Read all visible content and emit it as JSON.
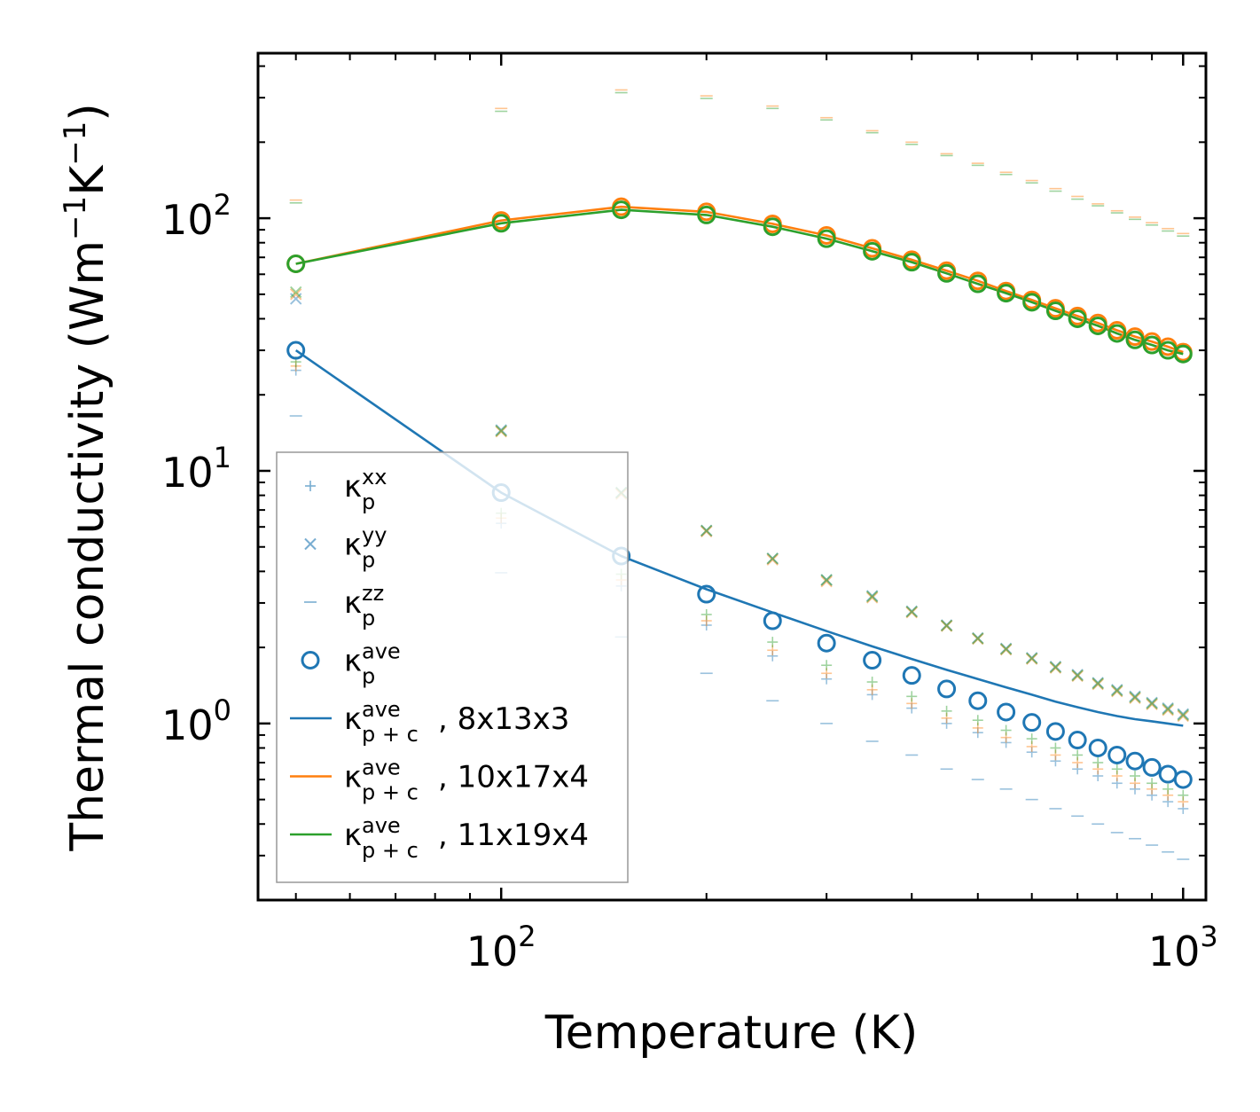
{
  "chart_data": {
    "type": "scatter",
    "title": "",
    "xlabel": "Temperature (K)",
    "ylabel": "Thermal conductivity (Wm$^{-1}$K$^{-1}$)",
    "xscale": "log",
    "yscale": "log",
    "xlim": [
      44,
      1080
    ],
    "ylim": [
      0.2,
      450
    ],
    "x_ticks": [
      {
        "value": 100,
        "base": "10",
        "exp": "2"
      },
      {
        "value": 1000,
        "base": "10",
        "exp": "3"
      }
    ],
    "y_ticks": [
      {
        "value": 1,
        "base": "10",
        "exp": "0"
      },
      {
        "value": 10,
        "base": "10",
        "exp": "1"
      },
      {
        "value": 100,
        "base": "10",
        "exp": "2"
      }
    ],
    "x": [
      50,
      100,
      150,
      200,
      250,
      300,
      350,
      400,
      450,
      500,
      550,
      600,
      650,
      700,
      750,
      800,
      850,
      900,
      950,
      1000
    ],
    "series": [
      {
        "name": "κp^xx (8x13x3)",
        "group": "xx",
        "marker": "plus",
        "color": "#1f77b4",
        "opacity": 0.45,
        "values": [
          25.0,
          6.2,
          3.5,
          2.45,
          1.85,
          1.5,
          1.3,
          1.15,
          1.0,
          0.92,
          0.84,
          0.77,
          0.71,
          0.66,
          0.62,
          0.58,
          0.55,
          0.52,
          0.49,
          0.46
        ]
      },
      {
        "name": "κp^xx (10x17x4)",
        "group": "xx",
        "marker": "plus",
        "color": "#ff7f0e",
        "opacity": 0.45,
        "values": [
          26.0,
          6.5,
          3.7,
          2.55,
          1.95,
          1.58,
          1.36,
          1.2,
          1.05,
          0.96,
          0.88,
          0.81,
          0.75,
          0.7,
          0.66,
          0.62,
          0.58,
          0.55,
          0.52,
          0.49
        ]
      },
      {
        "name": "κp^xx (11x19x4)",
        "group": "xx",
        "marker": "plus",
        "color": "#2ca02c",
        "opacity": 0.45,
        "values": [
          27.0,
          6.8,
          3.9,
          2.7,
          2.1,
          1.7,
          1.46,
          1.28,
          1.12,
          1.03,
          0.94,
          0.87,
          0.8,
          0.75,
          0.7,
          0.66,
          0.62,
          0.58,
          0.55,
          0.52
        ]
      },
      {
        "name": "κp^yy (8x13x3)",
        "group": "yy",
        "marker": "cross",
        "color": "#1f77b4",
        "opacity": 0.45,
        "values": [
          48.0,
          14.5,
          8.2,
          5.8,
          4.5,
          3.7,
          3.2,
          2.78,
          2.45,
          2.18,
          1.98,
          1.82,
          1.68,
          1.56,
          1.45,
          1.36,
          1.28,
          1.21,
          1.15,
          1.09
        ]
      },
      {
        "name": "κp^yy (10x17x4)",
        "group": "yy",
        "marker": "cross",
        "color": "#ff7f0e",
        "opacity": 0.45,
        "values": [
          50.0,
          14.3,
          8.1,
          5.75,
          4.45,
          3.65,
          3.15,
          2.75,
          2.43,
          2.16,
          1.96,
          1.8,
          1.66,
          1.54,
          1.43,
          1.34,
          1.26,
          1.19,
          1.13,
          1.07
        ]
      },
      {
        "name": "κp^yy (11x19x4)",
        "group": "yy",
        "marker": "cross",
        "color": "#2ca02c",
        "opacity": 0.45,
        "values": [
          51.0,
          14.4,
          8.2,
          5.8,
          4.5,
          3.7,
          3.18,
          2.77,
          2.44,
          2.17,
          1.97,
          1.81,
          1.67,
          1.55,
          1.44,
          1.35,
          1.27,
          1.2,
          1.14,
          1.08
        ]
      },
      {
        "name": "κp^zz (8x13x3)",
        "group": "zz",
        "marker": "hline",
        "color": "#1f77b4",
        "opacity": 0.45,
        "values": [
          16.5,
          3.95,
          2.2,
          1.58,
          1.23,
          1.0,
          0.85,
          0.75,
          0.66,
          0.6,
          0.55,
          0.5,
          0.46,
          0.43,
          0.4,
          0.37,
          0.35,
          0.33,
          0.31,
          0.29
        ]
      },
      {
        "name": "κp^zz (10x17x4)",
        "group": "zz",
        "marker": "hline",
        "color": "#ff7f0e",
        "opacity": 0.45,
        "values": [
          118,
          272,
          322,
          305,
          278,
          250,
          222,
          200,
          180,
          165,
          152,
          141,
          131,
          122,
          114,
          107,
          101,
          96,
          91,
          87
        ]
      },
      {
        "name": "κp^zz (11x19x4)",
        "group": "zz",
        "marker": "hline",
        "color": "#2ca02c",
        "opacity": 0.45,
        "values": [
          115,
          265,
          314,
          298,
          272,
          245,
          218,
          196,
          177,
          162,
          149,
          138,
          128,
          119,
          112,
          105,
          99,
          94,
          89,
          85
        ]
      },
      {
        "name": "κp^ave (8x13x3)",
        "group": "ave",
        "marker": "circle",
        "color": "#1f77b4",
        "opacity": 1,
        "values": [
          30.0,
          8.2,
          4.6,
          3.25,
          2.55,
          2.08,
          1.78,
          1.55,
          1.37,
          1.23,
          1.11,
          1.01,
          0.93,
          0.86,
          0.8,
          0.75,
          0.71,
          0.67,
          0.63,
          0.6
        ]
      },
      {
        "name": "κp^ave (10x17x4)",
        "group": "ave",
        "marker": "circle",
        "color": "#ff7f0e",
        "opacity": 1,
        "values": [
          66.0,
          98.0,
          111.0,
          106.0,
          95.0,
          85.5,
          76.0,
          68.5,
          62.0,
          56.5,
          51.5,
          47.5,
          44.0,
          41.0,
          38.5,
          36.0,
          34.0,
          32.5,
          31.0,
          29.5
        ]
      },
      {
        "name": "κp^ave (11x19x4)",
        "group": "ave",
        "marker": "circle",
        "color": "#2ca02c",
        "opacity": 1,
        "values": [
          66.0,
          95.5,
          108.0,
          103.0,
          92.5,
          83.0,
          74.0,
          67.0,
          60.5,
          55.0,
          50.5,
          46.5,
          43.0,
          40.0,
          37.5,
          35.0,
          33.0,
          31.5,
          30.0,
          29.0
        ]
      },
      {
        "name": "κp+c^ave, 8x13x3",
        "group": "line",
        "marker": "line",
        "color": "#1f77b4",
        "opacity": 1,
        "values": [
          30.0,
          8.2,
          4.6,
          3.4,
          2.75,
          2.32,
          2.02,
          1.8,
          1.63,
          1.5,
          1.39,
          1.3,
          1.22,
          1.16,
          1.11,
          1.07,
          1.04,
          1.02,
          1.0,
          0.98
        ]
      },
      {
        "name": "κp+c^ave, 10x17x4",
        "group": "line",
        "marker": "line",
        "color": "#ff7f0e",
        "opacity": 1,
        "values": [
          66.0,
          98.0,
          111.0,
          106.0,
          95.0,
          85.5,
          76.0,
          68.5,
          62.0,
          56.5,
          51.5,
          47.5,
          44.0,
          41.0,
          38.5,
          36.0,
          34.0,
          32.5,
          31.0,
          29.5
        ]
      },
      {
        "name": "κp+c^ave, 11x19x4",
        "group": "line",
        "marker": "line",
        "color": "#2ca02c",
        "opacity": 1,
        "values": [
          66.0,
          95.5,
          108.0,
          103.0,
          92.5,
          83.0,
          74.0,
          67.0,
          60.5,
          55.0,
          50.5,
          46.5,
          43.0,
          40.0,
          37.5,
          35.0,
          33.0,
          31.5,
          30.0,
          29.0
        ]
      }
    ],
    "legend": {
      "position": "lower-left",
      "entries": [
        {
          "marker": "plus",
          "color": "#1f77b4",
          "kappa": "κ",
          "sub": "p",
          "sup": "xx",
          "label": ""
        },
        {
          "marker": "cross",
          "color": "#1f77b4",
          "kappa": "κ",
          "sub": "p",
          "sup": "yy",
          "label": ""
        },
        {
          "marker": "hline",
          "color": "#1f77b4",
          "kappa": "κ",
          "sub": "p",
          "sup": "zz",
          "label": ""
        },
        {
          "marker": "circle",
          "color": "#1f77b4",
          "kappa": "κ",
          "sub": "p",
          "sup": "ave",
          "label": ""
        },
        {
          "marker": "line",
          "color": "#1f77b4",
          "kappa": "κ",
          "sub": "p + c",
          "sup": "ave",
          "label": ", 8x13x3"
        },
        {
          "marker": "line",
          "color": "#ff7f0e",
          "kappa": "κ",
          "sub": "p + c",
          "sup": "ave",
          "label": ", 10x17x4"
        },
        {
          "marker": "line",
          "color": "#2ca02c",
          "kappa": "κ",
          "sub": "p + c",
          "sup": "ave",
          "label": ", 11x19x4"
        }
      ]
    }
  }
}
